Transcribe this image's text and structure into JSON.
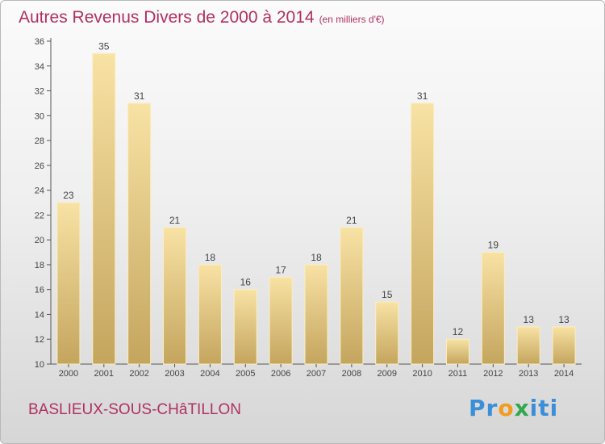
{
  "title": "Autres Revenus Divers de 2000 à 2014",
  "subtitle": "(en milliers d'€)",
  "commune": "BASLIEUX-SOUS-CHâTILLON",
  "logo": {
    "p1": "Pr",
    "o": "o",
    "x": "x",
    "i": "iti"
  },
  "colors": {
    "title": "#b03060",
    "bar_light": "#f8e2a4",
    "bar_dark": "#c4a55e",
    "bar_edge": "#fbeec0",
    "axis": "#555555"
  },
  "chart_data": {
    "type": "bar",
    "categories": [
      "2000",
      "2001",
      "2002",
      "2003",
      "2004",
      "2005",
      "2006",
      "2007",
      "2008",
      "2009",
      "2010",
      "2011",
      "2012",
      "2013",
      "2014"
    ],
    "values": [
      23,
      35,
      31,
      21,
      18,
      16,
      17,
      18,
      21,
      15,
      31,
      12,
      19,
      13,
      13
    ],
    "title": "Autres Revenus Divers de 2000 à 2014",
    "ylim": [
      10,
      36
    ],
    "yticks": [
      10,
      12,
      14,
      16,
      18,
      20,
      22,
      24,
      26,
      28,
      30,
      32,
      34,
      36
    ],
    "grid": false,
    "legend": "none"
  }
}
